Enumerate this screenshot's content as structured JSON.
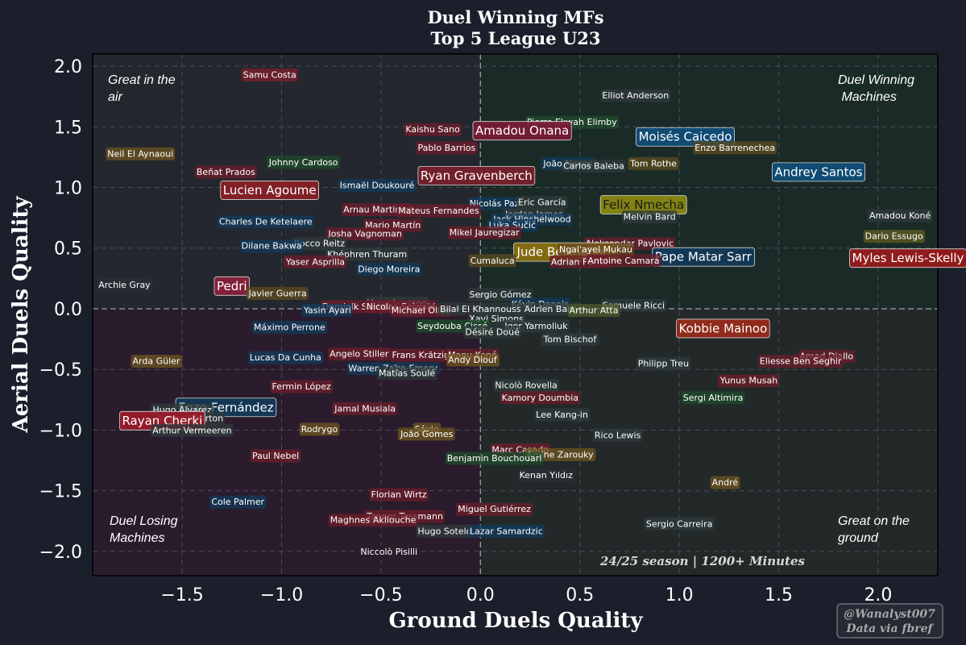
{
  "chart_data": {
    "type": "scatter",
    "title": "Duel Winning MFs",
    "subtitle": "Top 5 League U23",
    "xlabel": "Ground Duels Quality",
    "ylabel": "Aerial Duels Quality",
    "xlim": [
      -1.95,
      2.3
    ],
    "ylim": [
      -2.2,
      2.1
    ],
    "xticks": [
      "−1.5",
      "−1.0",
      "−0.5",
      "0.0",
      "0.5",
      "1.0",
      "1.5",
      "2.0"
    ],
    "xtick_values": [
      -1.5,
      -1.0,
      -0.5,
      0.0,
      0.5,
      1.0,
      1.5,
      2.0
    ],
    "yticks": [
      "2.0",
      "1.5",
      "1.0",
      "0.5",
      "0.0",
      "−0.5",
      "−1.0",
      "−1.5",
      "−2.0"
    ],
    "ytick_values": [
      2.0,
      1.5,
      1.0,
      0.5,
      0.0,
      -0.5,
      -1.0,
      -1.5,
      -2.0
    ],
    "grid": true,
    "quadrants": {
      "top_left": [
        "Great in the",
        "air"
      ],
      "top_right": [
        "Duel Winning",
        " Machines"
      ],
      "bottom_left": [
        "Duel Losing",
        "Machines"
      ],
      "bottom_right": [
        "Great on the",
        "ground"
      ]
    },
    "quadrant_colors": {
      "top_left": "#24272e",
      "top_right": "#1a2b27",
      "bottom_left": "#2a1c2c",
      "bottom_right": "#232929"
    },
    "annotation": "24/25 season | 1200+ Minutes",
    "points": [
      {
        "name": "Samu Costa",
        "x": -1.06,
        "y": 1.93,
        "color": "#7a1f2b",
        "size": "s"
      },
      {
        "name": "Elliot Anderson",
        "x": 0.78,
        "y": 1.76,
        "color": "#2e3a3a",
        "size": "s"
      },
      {
        "name": "Pierre Ekwah Elimby",
        "x": 0.46,
        "y": 1.54,
        "color": "#1f4a2a",
        "size": "s"
      },
      {
        "name": "Kaishu Sano",
        "x": -0.24,
        "y": 1.48,
        "color": "#6a1e2a",
        "size": "s"
      },
      {
        "name": "Amadou Onana",
        "x": 0.21,
        "y": 1.47,
        "color": "#7a1a35",
        "size": "l"
      },
      {
        "name": "Moisés Caicedo",
        "x": 1.03,
        "y": 1.42,
        "color": "#0f4e7a",
        "size": "l"
      },
      {
        "name": "Pablo Barrios",
        "x": -0.17,
        "y": 1.33,
        "color": "#6a1e2a",
        "size": "s"
      },
      {
        "name": "Enzo Barrenechea",
        "x": 1.28,
        "y": 1.33,
        "color": "#5c4a20",
        "size": "s"
      },
      {
        "name": "Neil El Aynaoui",
        "x": -1.71,
        "y": 1.28,
        "color": "#6b5320",
        "size": "s"
      },
      {
        "name": "Johnny Cardoso",
        "x": -0.89,
        "y": 1.21,
        "color": "#1f4a2a",
        "size": "s"
      },
      {
        "name": "João Neves",
        "x": 0.44,
        "y": 1.2,
        "color": "#123a5a",
        "size": "s"
      },
      {
        "name": "Carlos Baleba",
        "x": 0.57,
        "y": 1.18,
        "color": "#2e3a3a",
        "size": "s"
      },
      {
        "name": "Tom Rothe",
        "x": 0.87,
        "y": 1.2,
        "color": "#5c4a20",
        "size": "s"
      },
      {
        "name": "Beñat Prados",
        "x": -1.28,
        "y": 1.13,
        "color": "#6a1e2a",
        "size": "s"
      },
      {
        "name": "Ryan Gravenberch",
        "x": -0.02,
        "y": 1.1,
        "color": "#7a1f2b",
        "size": "l"
      },
      {
        "name": "Andrey Santos",
        "x": 1.7,
        "y": 1.13,
        "color": "#0f4e7a",
        "size": "l"
      },
      {
        "name": "Ismaël Doukouré",
        "x": -0.52,
        "y": 1.02,
        "color": "#123a5a",
        "size": "s"
      },
      {
        "name": "Lucien Agoume",
        "x": -1.06,
        "y": 0.98,
        "color": "#8a1f26",
        "size": "l"
      },
      {
        "name": "Nicolás Paz",
        "x": 0.07,
        "y": 0.87,
        "color": "#123a5a",
        "size": "s"
      },
      {
        "name": "Eric García",
        "x": 0.31,
        "y": 0.88,
        "color": "#2e3a3a",
        "size": "s"
      },
      {
        "name": "Felix Nmecha",
        "x": 0.82,
        "y": 0.86,
        "color": "#8a8a10",
        "size": "l",
        "text_color": "#1a1a1a"
      },
      {
        "name": "Arnau Martinez",
        "x": -0.52,
        "y": 0.82,
        "color": "#6a1e2a",
        "size": "s"
      },
      {
        "name": "Mateus Fernandes",
        "x": -0.21,
        "y": 0.81,
        "color": "#6a1e2a",
        "size": "s"
      },
      {
        "name": "Jordan James",
        "x": 0.27,
        "y": 0.78,
        "color": "#2e3a3a",
        "size": "s"
      },
      {
        "name": "Melvin Bard",
        "x": 0.85,
        "y": 0.76,
        "color": "#2e3a3a",
        "size": "s"
      },
      {
        "name": "Amadou Koné",
        "x": 2.11,
        "y": 0.77,
        "color": "#2e3a3a",
        "size": "s"
      },
      {
        "name": "Jack Hinshelwood",
        "x": 0.26,
        "y": 0.74,
        "color": "#123a5a",
        "size": "s"
      },
      {
        "name": "Charles De Ketelaere",
        "x": -1.08,
        "y": 0.72,
        "color": "#123a5a",
        "size": "s"
      },
      {
        "name": "Mario Martín",
        "x": -0.44,
        "y": 0.69,
        "color": "#6a1e2a",
        "size": "s"
      },
      {
        "name": "Luka Sučić",
        "x": 0.16,
        "y": 0.69,
        "color": "#123a5a",
        "size": "s"
      },
      {
        "name": "Josha Vagnoman",
        "x": -0.58,
        "y": 0.62,
        "color": "#6a1e2a",
        "size": "s"
      },
      {
        "name": "Mikel Jauregizar",
        "x": 0.02,
        "y": 0.63,
        "color": "#6a1e2a",
        "size": "s"
      },
      {
        "name": "Dario Essugo",
        "x": 2.08,
        "y": 0.6,
        "color": "#5c5a20",
        "size": "s"
      },
      {
        "name": "Rocco Reitz",
        "x": -0.81,
        "y": 0.54,
        "color": "#2e3a3a",
        "size": "s"
      },
      {
        "name": "Dilane Bakwa",
        "x": -1.05,
        "y": 0.52,
        "color": "#123a5a",
        "size": "s"
      },
      {
        "name": "Aleksandar Pavlovic",
        "x": 0.75,
        "y": 0.54,
        "color": "#6a1e2a",
        "size": "s"
      },
      {
        "name": "Khéphren Thuram",
        "x": -0.57,
        "y": 0.45,
        "color": "#2e3a3a",
        "size": "s"
      },
      {
        "name": "Jude Bellingham",
        "x": 0.43,
        "y": 0.47,
        "color": "#8a7010",
        "size": "l"
      },
      {
        "name": "Ngal'ayel Mukau",
        "x": 0.58,
        "y": 0.49,
        "color": "#6a4a20",
        "size": "s"
      },
      {
        "name": "Pape Matar Sarr",
        "x": 1.12,
        "y": 0.43,
        "color": "#123a5a",
        "size": "l"
      },
      {
        "name": "Myles Lewis-Skelly",
        "x": 2.15,
        "y": 0.42,
        "color": "#9a1a1a",
        "size": "l"
      },
      {
        "name": "Yaser Asprilla",
        "x": -0.83,
        "y": 0.39,
        "color": "#6a1e2a",
        "size": "s"
      },
      {
        "name": "Cumaluca",
        "x": 0.06,
        "y": 0.4,
        "color": "#5c4a20",
        "size": "s"
      },
      {
        "name": "Adrian Furrer",
        "x": 0.5,
        "y": 0.39,
        "color": "#6a1e2a",
        "size": "s"
      },
      {
        "name": "Antoine Camara",
        "x": 0.72,
        "y": 0.4,
        "color": "#6a1e2a",
        "size": "s"
      },
      {
        "name": "Diego Moreira",
        "x": -0.46,
        "y": 0.33,
        "color": "#123a5a",
        "size": "s"
      },
      {
        "name": "Archie Gray",
        "x": -1.79,
        "y": 0.2,
        "color": "#2a2e36",
        "size": "s"
      },
      {
        "name": "Pedri",
        "x": -1.25,
        "y": 0.19,
        "color": "#8a1f3a",
        "size": "l"
      },
      {
        "name": "Javier Guerra",
        "x": -1.02,
        "y": 0.13,
        "color": "#5c4a20",
        "size": "s"
      },
      {
        "name": "Sergio Gómez",
        "x": 0.1,
        "y": 0.12,
        "color": "#2e3a3a",
        "size": "s"
      },
      {
        "name": "Hugo Larsson",
        "x": -0.42,
        "y": 0.05,
        "color": "#2e3a3a",
        "size": "s"
      },
      {
        "name": "Dominik Szoboszlai",
        "x": -0.58,
        "y": 0.02,
        "color": "#6a1e2a",
        "size": "s"
      },
      {
        "name": "Nicolas Seiwald",
        "x": -0.4,
        "y": 0.02,
        "color": "#6a1e2a",
        "size": "s"
      },
      {
        "name": "Kévin Danois",
        "x": 0.3,
        "y": 0.04,
        "color": "#123a5a",
        "size": "s"
      },
      {
        "name": "Samuele Ricci",
        "x": 0.77,
        "y": 0.03,
        "color": "#2e3a3a",
        "size": "s"
      },
      {
        "name": "Yasin Ayari",
        "x": -0.77,
        "y": -0.01,
        "color": "#123a5a",
        "size": "s"
      },
      {
        "name": "Michael Olise",
        "x": -0.3,
        "y": -0.01,
        "color": "#6a1e2a",
        "size": "s"
      },
      {
        "name": "Bilal El Khannouss",
        "x": 0.0,
        "y": 0.0,
        "color": "#2e3a3a",
        "size": "s"
      },
      {
        "name": "Adrien Barry",
        "x": 0.36,
        "y": 0.0,
        "color": "#2e3a3a",
        "size": "s"
      },
      {
        "name": "Arthur Atta",
        "x": 0.57,
        "y": -0.01,
        "color": "#4a5a2a",
        "size": "s"
      },
      {
        "name": "Xavi Simons",
        "x": 0.08,
        "y": -0.08,
        "color": "#2e3a3a",
        "size": "s"
      },
      {
        "name": "Máximo Perrone",
        "x": -0.96,
        "y": -0.15,
        "color": "#123a5a",
        "size": "s"
      },
      {
        "name": "Seydouba Cissé",
        "x": -0.14,
        "y": -0.14,
        "color": "#1f4a2a",
        "size": "s"
      },
      {
        "name": "Igor Yarmoliuk",
        "x": 0.28,
        "y": -0.14,
        "color": "#2e3a3a",
        "size": "s"
      },
      {
        "name": "Désiré Doué",
        "x": 0.06,
        "y": -0.19,
        "color": "#2e3a3a",
        "size": "s"
      },
      {
        "name": "Kobbie Mainoo",
        "x": 1.22,
        "y": -0.16,
        "color": "#9a2a1a",
        "size": "l"
      },
      {
        "name": "Tom Bischof",
        "x": 0.45,
        "y": -0.25,
        "color": "#2e3a3a",
        "size": "s"
      },
      {
        "name": "Angelo Stiller",
        "x": -0.61,
        "y": -0.37,
        "color": "#6a1e2a",
        "size": "s"
      },
      {
        "name": "Frans Krätzig",
        "x": -0.3,
        "y": -0.38,
        "color": "#6a1e2a",
        "size": "s"
      },
      {
        "name": "Manu Koné",
        "x": -0.04,
        "y": -0.38,
        "color": "#6a1e2a",
        "size": "s"
      },
      {
        "name": "Lucas Da Cunha",
        "x": -0.98,
        "y": -0.4,
        "color": "#123a5a",
        "size": "s"
      },
      {
        "name": "Amad Diallo",
        "x": 1.74,
        "y": -0.39,
        "color": "#6a1e2a",
        "size": "s"
      },
      {
        "name": "Andy Diouf",
        "x": -0.04,
        "y": -0.42,
        "color": "#6b5320",
        "size": "s"
      },
      {
        "name": "Arda Güler",
        "x": -1.63,
        "y": -0.43,
        "color": "#6b5320",
        "size": "s"
      },
      {
        "name": "Eliesse Ben Seghir",
        "x": 1.61,
        "y": -0.43,
        "color": "#6a1e2a",
        "size": "s"
      },
      {
        "name": "Philipp Treu",
        "x": 0.92,
        "y": -0.45,
        "color": "#2e3a3a",
        "size": "s"
      },
      {
        "name": "Warren Zaïre-Emery",
        "x": -0.44,
        "y": -0.49,
        "color": "#123a5a",
        "size": "s"
      },
      {
        "name": "Matías Soulé",
        "x": -0.37,
        "y": -0.53,
        "color": "#2e3a3a",
        "size": "s"
      },
      {
        "name": "Yunus Musah",
        "x": 1.35,
        "y": -0.59,
        "color": "#6a1e2a",
        "size": "s"
      },
      {
        "name": "Fermin López",
        "x": -0.9,
        "y": -0.64,
        "color": "#6a1e2a",
        "size": "s"
      },
      {
        "name": "Nicolò Rovella",
        "x": 0.23,
        "y": -0.63,
        "color": "#2e3a3a",
        "size": "s"
      },
      {
        "name": "Kamory Doumbia",
        "x": 0.3,
        "y": -0.73,
        "color": "#6a1e2a",
        "size": "s"
      },
      {
        "name": "Sergi Altimira",
        "x": 1.17,
        "y": -0.73,
        "color": "#1f4a2a",
        "size": "s"
      },
      {
        "name": "Enzo Fernández",
        "x": -1.28,
        "y": -0.81,
        "color": "#123a5a",
        "size": "l"
      },
      {
        "name": "Hugo Álvarez",
        "x": -1.5,
        "y": -0.83,
        "color": "#2e3a3a",
        "size": "s"
      },
      {
        "name": "Jamal Musiala",
        "x": -0.58,
        "y": -0.82,
        "color": "#6a1e2a",
        "size": "s"
      },
      {
        "name": "Lee Kang-in",
        "x": 0.41,
        "y": -0.87,
        "color": "#2e3a3a",
        "size": "s"
      },
      {
        "name": "Adam Wharton",
        "x": -1.46,
        "y": -0.9,
        "color": "#2e3a3a",
        "size": "s"
      },
      {
        "name": "Rayan Cherki",
        "x": -1.6,
        "y": -0.92,
        "color": "#9a1a2a",
        "size": "l"
      },
      {
        "name": "Rodrygo",
        "x": -0.81,
        "y": -0.99,
        "color": "#6b5320",
        "size": "s"
      },
      {
        "name": "Arthur Vermeeren",
        "x": -1.45,
        "y": -1.0,
        "color": "#2e3a3a",
        "size": "s"
      },
      {
        "name": "Sávio",
        "x": -0.27,
        "y": -0.99,
        "color": "#6b5320",
        "size": "s"
      },
      {
        "name": "João Gomes",
        "x": -0.27,
        "y": -1.03,
        "color": "#6b5320",
        "size": "s"
      },
      {
        "name": "Rico Lewis",
        "x": 0.69,
        "y": -1.04,
        "color": "#2e3a3a",
        "size": "s"
      },
      {
        "name": "Marc Casado",
        "x": 0.2,
        "y": -1.16,
        "color": "#6a1e2a",
        "size": "s"
      },
      {
        "name": "Paul Nebel",
        "x": -1.03,
        "y": -1.21,
        "color": "#6a1e2a",
        "size": "s"
      },
      {
        "name": "Amine Zarouky",
        "x": 0.4,
        "y": -1.2,
        "color": "#6b5320",
        "size": "s"
      },
      {
        "name": "Benjamin Bouchouari",
        "x": 0.07,
        "y": -1.23,
        "color": "#1f4a2a",
        "size": "s"
      },
      {
        "name": "Kenan Yıldız",
        "x": 0.33,
        "y": -1.37,
        "color": "#2a2e36",
        "size": "s"
      },
      {
        "name": "André",
        "x": 1.23,
        "y": -1.43,
        "color": "#6b5320",
        "size": "s"
      },
      {
        "name": "Florian Wirtz",
        "x": -0.41,
        "y": -1.53,
        "color": "#6a1e2a",
        "size": "s"
      },
      {
        "name": "Cole Palmer",
        "x": -1.22,
        "y": -1.59,
        "color": "#123a5a",
        "size": "s"
      },
      {
        "name": "Miguel Gutiérrez",
        "x": 0.07,
        "y": -1.65,
        "color": "#6a1e2a",
        "size": "s"
      },
      {
        "name": "Tanner Tessmann",
        "x": -0.38,
        "y": -1.71,
        "color": "#6a1e2a",
        "size": "s"
      },
      {
        "name": "Maghnes Akliouche",
        "x": -0.54,
        "y": -1.74,
        "color": "#6a1e2a",
        "size": "s"
      },
      {
        "name": "Sergio Carreira",
        "x": 1.0,
        "y": -1.77,
        "color": "#2e3a3a",
        "size": "s"
      },
      {
        "name": "Hugo Sotelo",
        "x": -0.18,
        "y": -1.83,
        "color": "#2e3a3a",
        "size": "s"
      },
      {
        "name": "Lazar Samardzic",
        "x": 0.13,
        "y": -1.83,
        "color": "#123a5a",
        "size": "s"
      },
      {
        "name": "Niccolò Pisilli",
        "x": -0.46,
        "y": -2.0,
        "color": "#2a1f2a",
        "size": "s"
      }
    ]
  },
  "credit": [
    "@Wanalyst007",
    "Data via fbref"
  ]
}
